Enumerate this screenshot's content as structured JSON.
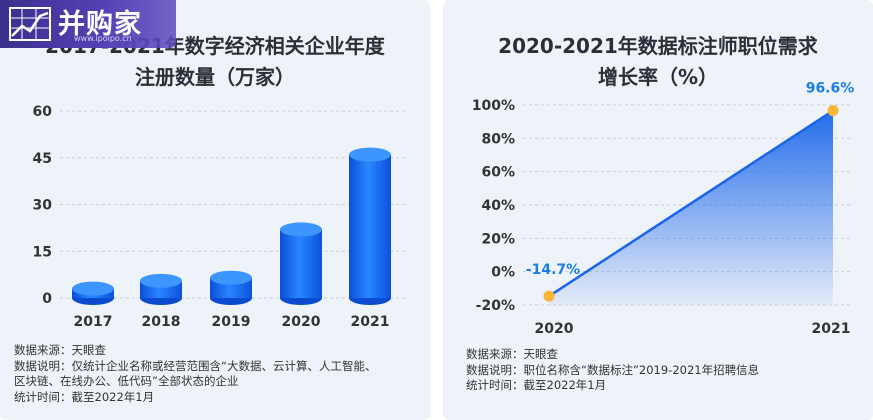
{
  "logo": {
    "text": "并购家",
    "subtitle": "www.ipoipo.cn"
  },
  "left_panel": {
    "title_line1": "2017-2021年数字经济相关企业年度",
    "title_line2": "注册数量（万家）",
    "notes": [
      "数据来源：天眼查",
      "数据说明：仅统计企业名称或经营范围含“大数据、云计算、人工智能、",
      "区块链、在线办公、低代码”全部状态的企业",
      "统计时间：截至2022年1月"
    ]
  },
  "right_panel": {
    "title_line1": "2020-2021年数据标注师职位需求",
    "title_line2": "增长率（%）",
    "notes": [
      "数据来源：天眼查",
      "数据说明：职位名称含“数据标注”2019-2021年招聘信息",
      "统计时间：截至2022年1月"
    ]
  },
  "chart_data": [
    {
      "type": "bar",
      "title": "2017-2021年数字经济相关企业年度注册数量（万家）",
      "categories": [
        "2017",
        "2018",
        "2019",
        "2020",
        "2021"
      ],
      "values": [
        3,
        5.5,
        6.5,
        22,
        46
      ],
      "yticks": [
        "0",
        "15",
        "30",
        "45",
        "60"
      ],
      "ylim": [
        0,
        60
      ],
      "grid": true,
      "color": "#1a66ea"
    },
    {
      "type": "area",
      "title": "2020-2021年数据标注师职位需求增长率（%）",
      "categories": [
        "2020",
        "2021"
      ],
      "values": [
        -14.7,
        96.6
      ],
      "data_labels": [
        "-14.7%",
        "96.6%"
      ],
      "yticks": [
        "-20%",
        "0%",
        "20%",
        "40%",
        "60%",
        "80%",
        "100%"
      ],
      "ylim": [
        -20,
        100
      ],
      "grid": true,
      "line_color": "#1a66ea",
      "marker_color": "#f7b733",
      "label_color": "#1a7fe0"
    }
  ]
}
